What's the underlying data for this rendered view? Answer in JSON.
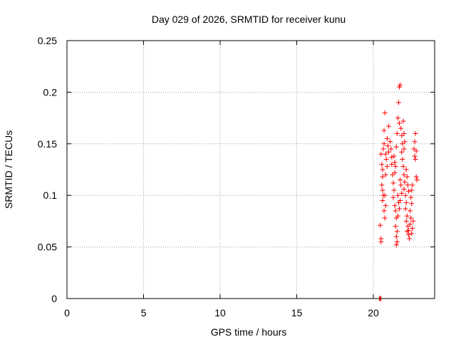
{
  "chart_data": {
    "type": "scatter",
    "title": "Day 029 of 2026, SRMTID for receiver kunu",
    "xlabel": "GPS time / hours",
    "ylabel": "SRMTID / TECUs",
    "xlim": [
      0,
      24
    ],
    "ylim": [
      0,
      0.25
    ],
    "x_ticks": [
      0,
      5,
      10,
      15,
      20
    ],
    "x_tick_labels": [
      "0",
      "5",
      "10",
      "15",
      "20"
    ],
    "y_ticks": [
      0,
      0.05,
      0.1,
      0.15,
      0.2,
      0.25
    ],
    "y_tick_labels": [
      "0",
      "0.05",
      "0.1",
      "0.15",
      "0.2",
      "0.25"
    ],
    "grid": true,
    "marker": "+",
    "series": [
      {
        "name": "SRMTID",
        "color": "#ff0000",
        "points": [
          [
            20.4,
            0.0
          ],
          [
            20.45,
            0.0
          ],
          [
            20.5,
            0.0
          ],
          [
            20.45,
            0.071
          ],
          [
            20.5,
            0.058
          ],
          [
            20.5,
            0.055
          ],
          [
            20.5,
            0.14
          ],
          [
            20.55,
            0.13
          ],
          [
            20.6,
            0.125
          ],
          [
            20.6,
            0.118
          ],
          [
            20.55,
            0.11
          ],
          [
            20.6,
            0.105
          ],
          [
            20.65,
            0.1
          ],
          [
            20.6,
            0.095
          ],
          [
            20.7,
            0.15
          ],
          [
            20.7,
            0.163
          ],
          [
            20.75,
            0.18
          ],
          [
            20.65,
            0.145
          ],
          [
            20.8,
            0.14
          ],
          [
            20.85,
            0.135
          ],
          [
            20.9,
            0.128
          ],
          [
            20.8,
            0.12
          ],
          [
            20.9,
            0.155
          ],
          [
            20.95,
            0.148
          ],
          [
            21.0,
            0.142
          ],
          [
            21.0,
            0.167
          ],
          [
            20.75,
            0.1
          ],
          [
            20.8,
            0.09
          ],
          [
            20.7,
            0.085
          ],
          [
            20.75,
            0.078
          ],
          [
            21.1,
            0.152
          ],
          [
            21.15,
            0.145
          ],
          [
            21.2,
            0.137
          ],
          [
            21.2,
            0.13
          ],
          [
            21.25,
            0.12
          ],
          [
            21.3,
            0.112
          ],
          [
            21.35,
            0.105
          ],
          [
            21.3,
            0.098
          ],
          [
            21.4,
            0.09
          ],
          [
            21.45,
            0.085
          ],
          [
            21.5,
            0.078
          ],
          [
            21.45,
            0.07
          ],
          [
            21.55,
            0.065
          ],
          [
            21.5,
            0.06
          ],
          [
            21.55,
            0.055
          ],
          [
            21.5,
            0.052
          ],
          [
            21.35,
            0.138
          ],
          [
            21.4,
            0.132
          ],
          [
            21.45,
            0.128
          ],
          [
            21.4,
            0.122
          ],
          [
            21.5,
            0.147
          ],
          [
            21.55,
            0.16
          ],
          [
            21.6,
            0.175
          ],
          [
            21.65,
            0.19
          ],
          [
            21.7,
            0.205
          ],
          [
            21.75,
            0.207
          ],
          [
            21.7,
            0.17
          ],
          [
            21.8,
            0.165
          ],
          [
            21.85,
            0.158
          ],
          [
            21.9,
            0.15
          ],
          [
            21.85,
            0.142
          ],
          [
            21.9,
            0.135
          ],
          [
            21.95,
            0.128
          ],
          [
            22.0,
            0.12
          ],
          [
            22.05,
            0.113
          ],
          [
            22.0,
            0.106
          ],
          [
            22.1,
            0.1
          ],
          [
            22.15,
            0.093
          ],
          [
            22.1,
            0.087
          ],
          [
            22.2,
            0.08
          ],
          [
            22.15,
            0.075
          ],
          [
            22.25,
            0.07
          ],
          [
            22.2,
            0.065
          ],
          [
            22.3,
            0.062
          ],
          [
            22.35,
            0.058
          ],
          [
            22.3,
            0.066
          ],
          [
            22.4,
            0.072
          ],
          [
            22.45,
            0.078
          ],
          [
            22.4,
            0.085
          ],
          [
            22.5,
            0.092
          ],
          [
            22.45,
            0.098
          ],
          [
            22.5,
            0.105
          ],
          [
            22.55,
            0.11
          ],
          [
            22.5,
            0.063
          ],
          [
            22.55,
            0.068
          ],
          [
            22.6,
            0.075
          ],
          [
            22.65,
            0.145
          ],
          [
            22.7,
            0.152
          ],
          [
            22.75,
            0.16
          ],
          [
            22.7,
            0.138
          ],
          [
            22.8,
            0.143
          ],
          [
            22.75,
            0.135
          ],
          [
            22.8,
            0.118
          ],
          [
            22.85,
            0.115
          ],
          [
            21.75,
            0.115
          ],
          [
            21.8,
            0.11
          ],
          [
            21.85,
            0.102
          ],
          [
            21.75,
            0.095
          ],
          [
            21.6,
            0.1
          ],
          [
            21.65,
            0.093
          ],
          [
            21.7,
            0.087
          ],
          [
            21.6,
            0.08
          ],
          [
            22.0,
            0.16
          ],
          [
            22.05,
            0.152
          ],
          [
            22.0,
            0.145
          ],
          [
            21.95,
            0.172
          ],
          [
            22.15,
            0.125
          ],
          [
            22.2,
            0.118
          ],
          [
            22.25,
            0.11
          ],
          [
            22.3,
            0.104
          ]
        ]
      }
    ]
  }
}
